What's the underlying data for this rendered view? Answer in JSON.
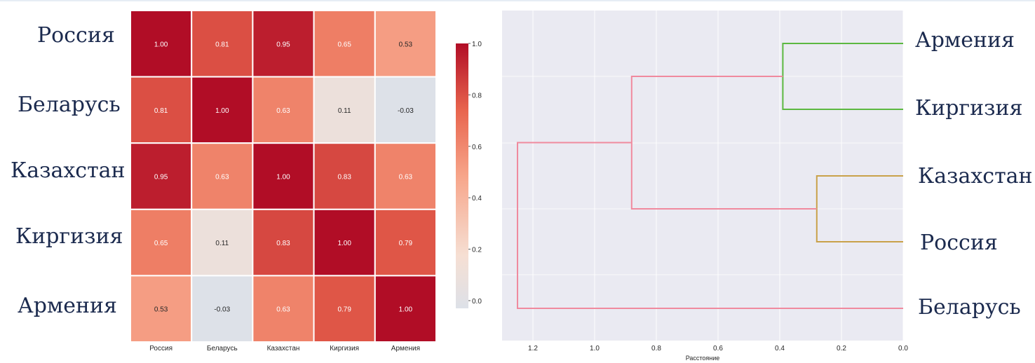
{
  "colors": {
    "high": "#b10d26",
    "mid_high": "#e8644d",
    "mid": "#f7a58a",
    "low": "#f6dfd3",
    "zero": "#dde1e8",
    "dendro_root": "#f08a9e",
    "dendro_cluster_a": "#5cb841",
    "dendro_cluster_b": "#c9a24a",
    "dendro_background": "#eaeaf2",
    "label_text": "#1b2a4e"
  },
  "chart_data": [
    {
      "type": "heatmap",
      "title": "",
      "row_labels": [
        "Россия",
        "Беларусь",
        "Казахстан",
        "Киргизия",
        "Армения"
      ],
      "col_labels": [
        "Россия",
        "Беларусь",
        "Казахстан",
        "Киргизия",
        "Армения"
      ],
      "values": [
        [
          1.0,
          0.81,
          0.95,
          0.65,
          0.53
        ],
        [
          0.81,
          1.0,
          0.63,
          0.11,
          -0.03
        ],
        [
          0.95,
          0.63,
          1.0,
          0.83,
          0.63
        ],
        [
          0.65,
          0.11,
          0.83,
          1.0,
          0.79
        ],
        [
          0.53,
          -0.03,
          0.63,
          0.79,
          1.0
        ]
      ],
      "cell_labels": [
        [
          "1.00",
          "0.81",
          "0.95",
          "0.65",
          "0.53"
        ],
        [
          "0.81",
          "1.00",
          "0.63",
          "0.11",
          "-0.03"
        ],
        [
          "0.95",
          "0.63",
          "1.00",
          "0.83",
          "0.63"
        ],
        [
          "0.65",
          "0.11",
          "0.83",
          "1.00",
          "0.79"
        ],
        [
          "0.53",
          "-0.03",
          "0.63",
          "0.79",
          "1.00"
        ]
      ],
      "colorbar": {
        "range": [
          -0.03,
          1.0
        ],
        "ticks": [
          0.0,
          0.2,
          0.4,
          0.6,
          0.8,
          1.0
        ],
        "tick_labels": [
          "0.0",
          "0.2",
          "0.4",
          "0.6",
          "0.8",
          "1.0"
        ]
      }
    },
    {
      "type": "dendrogram",
      "title": "",
      "xlabel": "Расстояние",
      "ylabel": "",
      "xlim": [
        1.3,
        0.0
      ],
      "x_ticks": [
        1.2,
        1.0,
        0.8,
        0.6,
        0.4,
        0.2,
        0.0
      ],
      "x_tick_labels": [
        "1.2",
        "1.0",
        "0.8",
        "0.6",
        "0.4",
        "0.2",
        "0.0"
      ],
      "leaves": [
        "Армения",
        "Киргизия",
        "Казахстан",
        "Россия",
        "Беларусь"
      ],
      "merges": [
        {
          "a": "Армения",
          "b": "Киргизия",
          "distance": 0.39,
          "cluster": "a"
        },
        {
          "a": "Казахстан",
          "b": "Россия",
          "distance": 0.28,
          "cluster": "b"
        },
        {
          "a": "Армения+Киргизия",
          "b": "Казахстан+Россия",
          "distance": 0.88,
          "cluster": "root"
        },
        {
          "a": "Армения+Киргизия+Казахстан+Россия",
          "b": "Беларусь",
          "distance": 1.25,
          "cluster": "root"
        }
      ]
    }
  ]
}
